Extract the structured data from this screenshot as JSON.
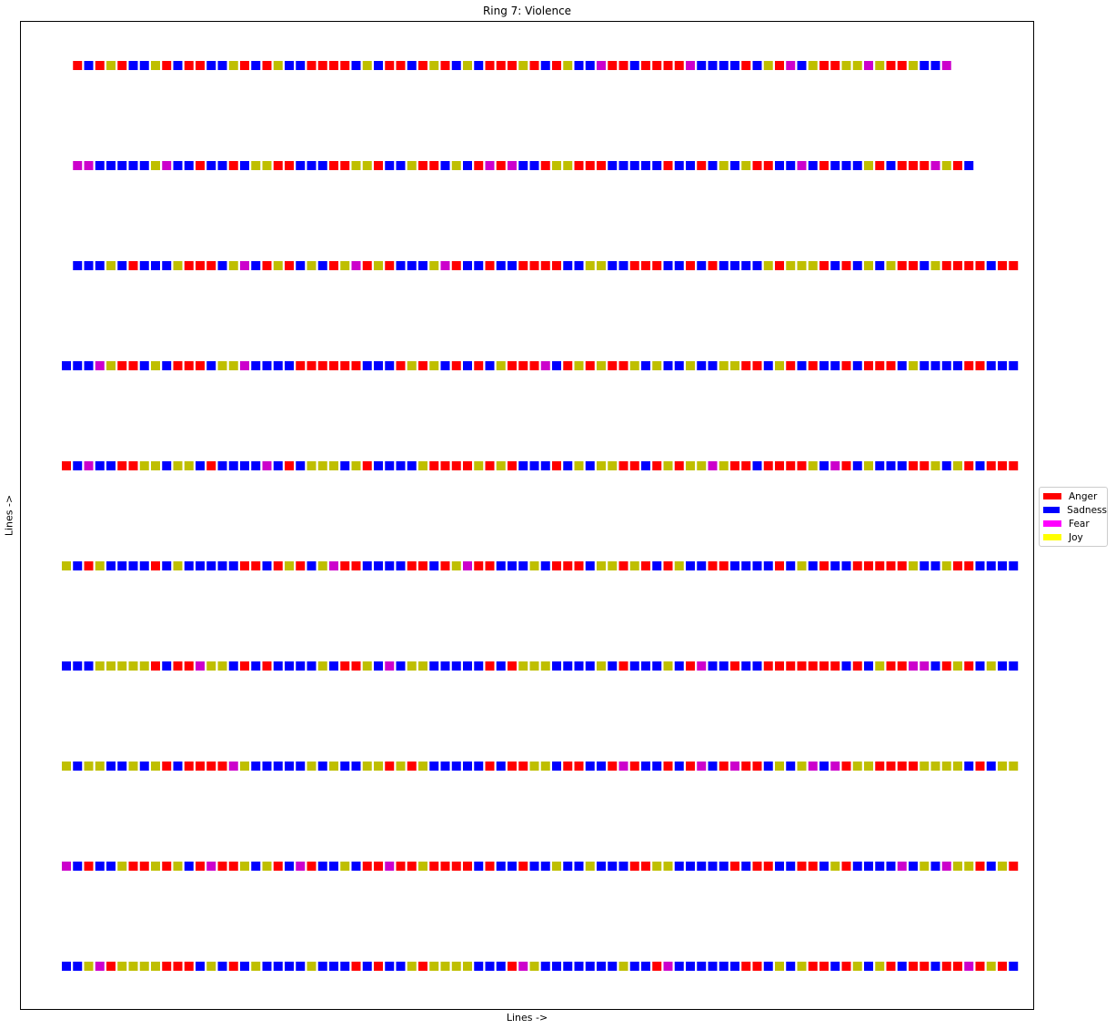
{
  "chart_data": {
    "type": "heatmap",
    "title": "Ring 7: Violence",
    "xlabel": "Lines ->",
    "ylabel": "Lines ->",
    "grid": false,
    "legend_placement": "right",
    "legend": [
      {
        "name": "Anger",
        "color": "#ff0000"
      },
      {
        "name": "Sadness",
        "color": "#0000ff"
      },
      {
        "name": "Fear",
        "color": "#cc00cc"
      },
      {
        "name": "Joy",
        "color": "#bfbf00"
      }
    ],
    "rows": [
      {
        "offset": 1,
        "cells": "RBRYRBBYRBRRBBYRBRYBBRRRRBYBRRBRYRBYBRRRYRBRYBBFRRBRRRRFBBBBRBYRFBYRRYYFYRRYBBF"
      },
      {
        "offset": 1,
        "cells": "FFBBBBBYFBBRBBRBYYRRBBBRRYYRBBYRRBYBRFRFBBRYYRRRBBBBBRBBRBYBYRRBBFBRBBBYRBRRRFYRB"
      },
      {
        "offset": 1,
        "cells": "BBBYBRBBBYRRRBYFBRYRBYBRYFRYRBBBYFRBBRBBRRRRBBYYBBRRRBBRBRBBBBYRYYYRBRBYBYRRBYRRRRBRR"
      },
      {
        "offset": 0,
        "cells": "BBBFYRRBYBRRRBYYFBBBBRRRRRRBBBRYRYBRBRBYRRRFBRYRYRRYBYBBYBBYYRRBYRBRBBRBRRRBYBBBBRRBBB"
      },
      {
        "offset": 0,
        "cells": "RBFBBRRYYBYYBRBBBBFBRBYYYBYRBBBBYRRRRYRYRBBBRBYBYYRRBRYRYYFYRRBRRRRYBFRBYBBBRRYBYRBRRRRFFBRRB"
      },
      {
        "offset": 0,
        "cells": "YBRYBBBBRBYBBBBBRRBRYRBYFRRBBBBRRBRYFRRBBBYBRRRBYYRYRBRYBBRRBBBBRBYBRBBRRRRRYBBYRRBBBBYRBBRBB"
      },
      {
        "offset": 0,
        "cells": "BBBYYYYYRBRRFYYBRBRBBBBYBRRYBFBYYBBBBBRBRYYYBBBBYBRBBBYBRFBBRBBRRRRRRRBRBYRRFFBRYRBYBBRRR"
      },
      {
        "offset": 0,
        "cells": "YBYYBBYBYRBRRRRFYBBBBBYBYBBYYRYRYBBBBBRBRRYYBRRBBRFRBBRBRFBRFRRBYBYFBFRYYRRRRYYYYBRBYYBB"
      },
      {
        "offset": 0,
        "cells": "FBRBBYRRYRYBRFRRYBYRBFRBBYBRRFRRYRRRRBRBBRBBYBBYBBBRRYYBBBBBRBRRBBRRBYRBBBBFBYBFYYRBYRRRRFRB"
      },
      {
        "offset": 0,
        "cells": "BBYFRYYYYRRRBYBRBYBBBBYBBBRBRBBYRYYYYBBBRFYBBBBBBBYBBRFBBBBBBRRBYBYRRBRYBYRBRRBRRFRYRBRBB"
      }
    ]
  }
}
